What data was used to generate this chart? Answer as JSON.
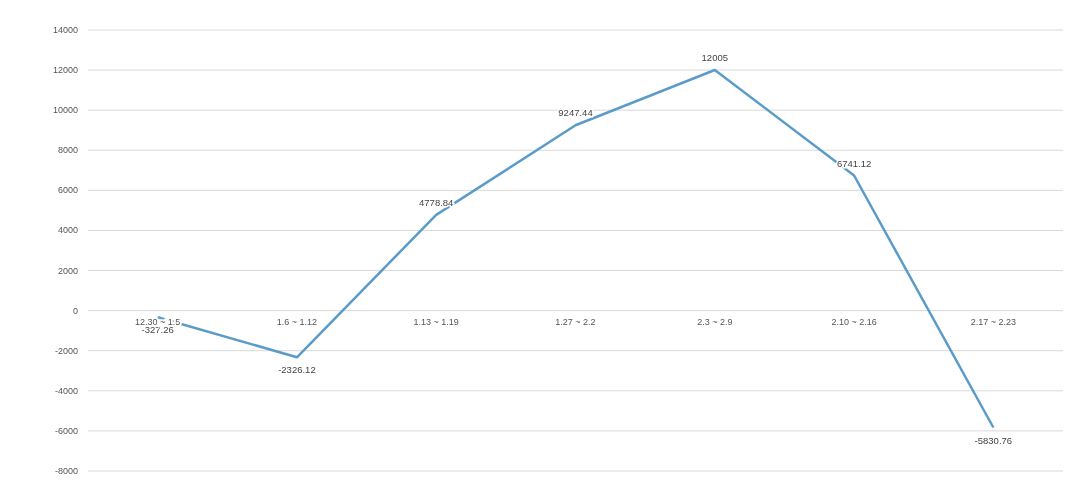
{
  "chart_data": {
    "type": "line",
    "categories": [
      "12.30 ~ 1.5",
      "1.6 ~ 1.12",
      "1.13 ~ 1.19",
      "1.27 ~ 2.2",
      "2.3 ~ 2.9",
      "2.10 ~ 2.16",
      "2.17 ~ 2.23"
    ],
    "series": [
      {
        "color": "#5b9bc8",
        "values": [
          -327.26,
          -2326.12,
          4778.84,
          9247.44,
          12005,
          6741.12,
          -5830.76
        ]
      }
    ],
    "ylim": [
      -8000,
      14000
    ],
    "yticks": [
      -8000,
      -6000,
      -4000,
      -2000,
      0,
      2000,
      4000,
      6000,
      8000,
      10000,
      12000,
      14000
    ],
    "grid": "y",
    "data_labels": true,
    "marker": "none",
    "line_style": "solid"
  }
}
